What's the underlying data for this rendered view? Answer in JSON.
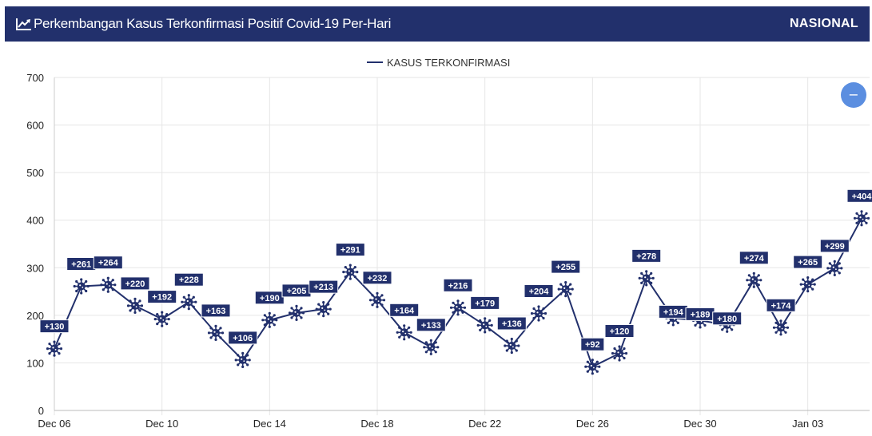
{
  "header": {
    "title": "Perkembangan Kasus Terkonfirmasi Positif Covid-19 Per-Hari",
    "scope_label": "NASIONAL",
    "title_icon": "line-chart-icon"
  },
  "zoom_button": {
    "icon": "minus-icon",
    "label": "−"
  },
  "colors": {
    "header_bg": "#22306c",
    "series": "#22306c",
    "zoom_button": "#5b8ee0"
  },
  "chart_data": {
    "type": "line",
    "series": [
      {
        "name": "KASUS TERKONFIRMASI",
        "values": [
          130,
          261,
          264,
          220,
          192,
          228,
          163,
          106,
          190,
          205,
          213,
          291,
          232,
          164,
          133,
          216,
          179,
          136,
          204,
          255,
          92,
          120,
          278,
          194,
          189,
          180,
          274,
          174,
          265,
          299,
          404
        ]
      }
    ],
    "x": [
      "Dec 06",
      "Dec 07",
      "Dec 08",
      "Dec 09",
      "Dec 10",
      "Dec 11",
      "Dec 12",
      "Dec 13",
      "Dec 14",
      "Dec 15",
      "Dec 16",
      "Dec 17",
      "Dec 18",
      "Dec 19",
      "Dec 20",
      "Dec 21",
      "Dec 22",
      "Dec 23",
      "Dec 24",
      "Dec 25",
      "Dec 26",
      "Dec 27",
      "Dec 28",
      "Dec 29",
      "Dec 30",
      "Dec 31",
      "Jan 01",
      "Jan 02",
      "Jan 03",
      "Jan 04",
      "Jan 05"
    ],
    "data_labels": [
      "+130",
      "+261",
      "+264",
      "+220",
      "+192",
      "+228",
      "+163",
      "+106",
      "+190",
      "+205",
      "+213",
      "+291",
      "+232",
      "+164",
      "+133",
      "+216",
      "+179",
      "+136",
      "+204",
      "+255",
      "+92",
      "+120",
      "+278",
      "+194",
      "+189",
      "+180",
      "+274",
      "+174",
      "+265",
      "+299",
      "+404"
    ],
    "label_position": [
      "above",
      "above",
      "above",
      "above",
      "above",
      "above",
      "above",
      "above",
      "above",
      "above",
      "above",
      "above",
      "above",
      "above",
      "above",
      "above",
      "above",
      "above",
      "above",
      "above",
      "above",
      "above",
      "above",
      "below",
      "below",
      "below",
      "above",
      "above",
      "above",
      "above",
      "above"
    ],
    "x_ticks": [
      "Dec 06",
      "Dec 10",
      "Dec 14",
      "Dec 18",
      "Dec 22",
      "Dec 26",
      "Dec 30",
      "Jan 03"
    ],
    "y_ticks": [
      0,
      100,
      200,
      300,
      400,
      500,
      600,
      700
    ],
    "ylim": [
      0,
      700
    ],
    "grid": true,
    "legend_position": "top-center",
    "marker": "virus-icon",
    "title": "",
    "xlabel": "",
    "ylabel": ""
  }
}
